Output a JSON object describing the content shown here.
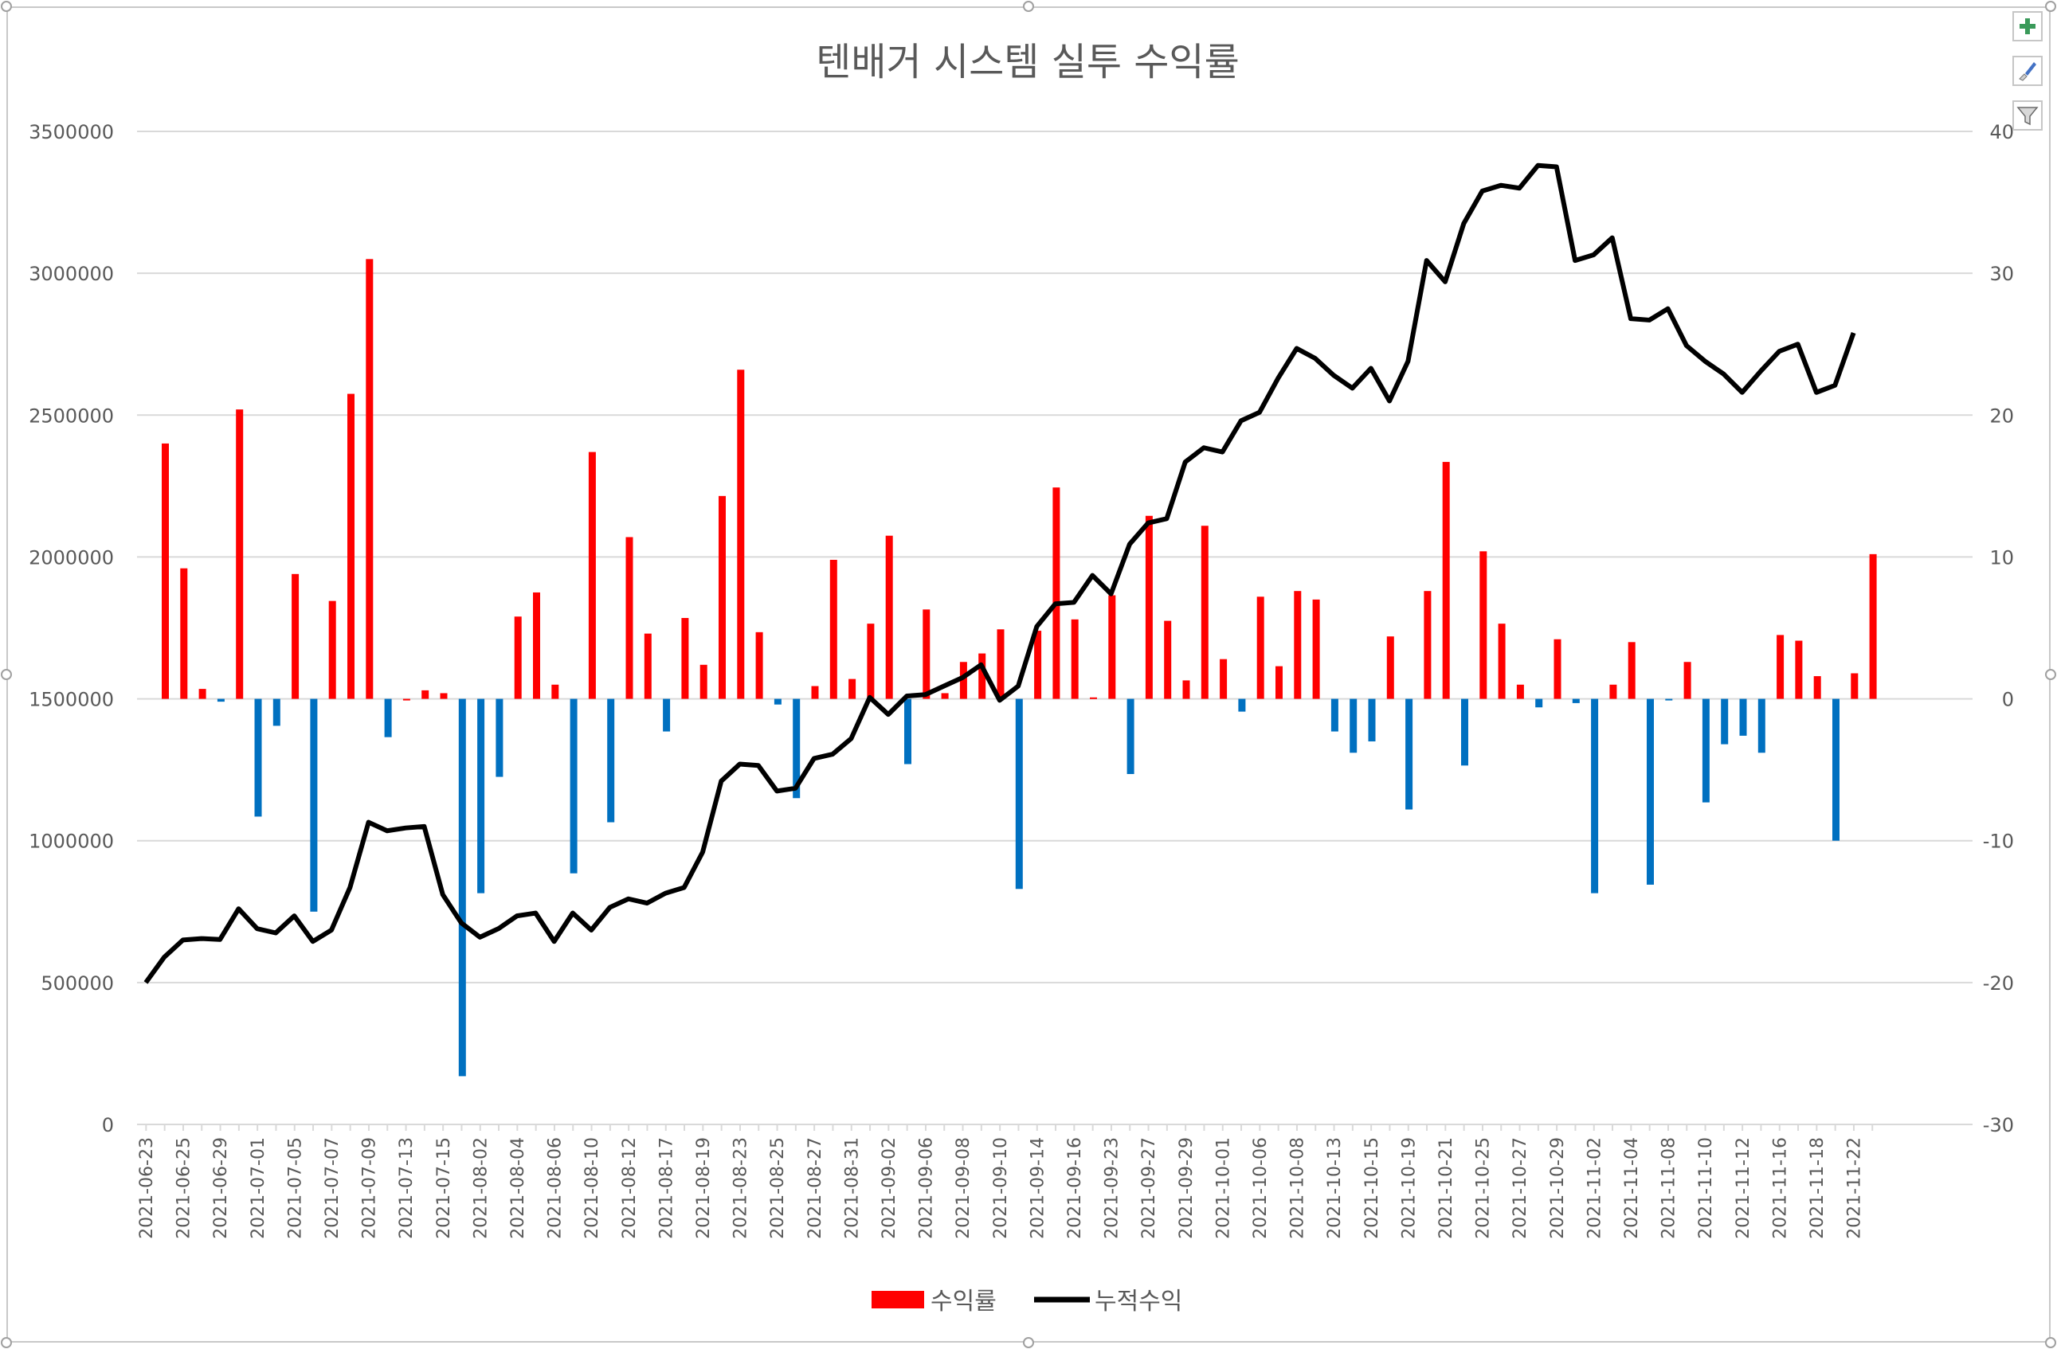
{
  "chart_data": {
    "type": "bar+line",
    "title": "텐배거 시스템 실투 수익률",
    "y_left_ticks": [
      "0",
      "500000",
      "1000000",
      "1500000",
      "2000000",
      "2500000",
      "3000000",
      "3500000"
    ],
    "y_right_ticks": [
      "-30",
      "-20",
      "-10",
      "0",
      "10",
      "20",
      "30",
      "40"
    ],
    "ylim_left": [
      0,
      3500000
    ],
    "ylim_right": [
      -30,
      40
    ],
    "grid": true,
    "legend_position": "bottom",
    "categories": [
      "2021-06-23",
      "",
      "2021-06-25",
      "",
      "2021-06-29",
      "",
      "2021-07-01",
      "",
      "2021-07-05",
      "",
      "2021-07-07",
      "",
      "2021-07-09",
      "",
      "2021-07-13",
      "",
      "2021-07-15",
      "",
      "2021-08-02",
      "",
      "2021-08-04",
      "",
      "2021-08-06",
      "",
      "2021-08-10",
      "",
      "2021-08-12",
      "",
      "2021-08-17",
      "",
      "2021-08-19",
      "",
      "2021-08-23",
      "",
      "2021-08-25",
      "",
      "2021-08-27",
      "",
      "2021-08-31",
      "",
      "2021-09-02",
      "",
      "2021-09-06",
      "",
      "2021-09-08",
      "",
      "2021-09-10",
      "",
      "2021-09-14",
      "",
      "2021-09-16",
      "",
      "2021-09-23",
      "",
      "2021-09-27",
      "",
      "2021-09-29",
      "",
      "2021-10-01",
      "",
      "2021-10-06",
      "",
      "2021-10-08",
      "",
      "2021-10-13",
      "",
      "2021-10-15",
      "",
      "2021-10-19",
      "",
      "2021-10-21",
      "",
      "2021-10-25",
      "",
      "2021-10-27",
      "",
      "2021-10-29",
      "",
      "2021-11-02",
      "",
      "2021-11-04",
      "",
      "2021-11-08",
      "",
      "2021-11-10",
      "",
      "2021-11-12",
      "",
      "2021-11-16",
      "",
      "2021-11-18",
      "",
      "2021-11-22"
    ],
    "series": [
      {
        "name": "수익률",
        "axis": "right",
        "type": "bar",
        "positive_color": "#ff0000",
        "negative_color": "#0070c0",
        "values": [
          18,
          9.2,
          0.7,
          -0.2,
          20.4,
          -8.3,
          -1.9,
          8.8,
          -15,
          6.9,
          21.5,
          31,
          -2.7,
          0,
          0.6,
          0.4,
          -26.6,
          -13.7,
          -5.5,
          5.8,
          7.5,
          1,
          -12.3,
          17.4,
          -8.7,
          11.4,
          4.6,
          -2.3,
          5.7,
          2.4,
          14.3,
          23.2,
          4.7,
          -0.4,
          -7,
          0.9,
          9.8,
          1.4,
          5.3,
          11.5,
          -4.6,
          6.3,
          0.4,
          2.6,
          3.2,
          4.9,
          -13.4,
          4.8,
          14.9,
          5.6,
          0.1,
          7.3,
          -5.3,
          12.9,
          5.5,
          1.3,
          12.2,
          2.8,
          -0.9,
          7.2,
          2.3,
          7.6,
          7,
          -2.3,
          -3.8,
          -3,
          4.4,
          -7.8,
          7.6,
          16.7,
          -4.7,
          10.4,
          5.3,
          1,
          -0.6,
          4.2,
          -0.3,
          -13.7,
          1,
          4,
          -13.1,
          -0.1,
          2.6,
          -7.3,
          -3.2,
          -2.6,
          -3.8,
          4.5,
          4.1,
          1.6,
          -10,
          1.8,
          10.2
        ]
      },
      {
        "name": "누적수익",
        "axis": "left",
        "type": "line",
        "color": "#000000",
        "values": [
          500000,
          590000,
          650000,
          655000,
          652000,
          760000,
          690000,
          675000,
          735000,
          645000,
          685000,
          835000,
          1065000,
          1035000,
          1045000,
          1050000,
          810000,
          710000,
          660000,
          690000,
          735000,
          745000,
          645000,
          745000,
          685000,
          765000,
          795000,
          780000,
          815000,
          835000,
          960000,
          1210000,
          1270000,
          1265000,
          1175000,
          1185000,
          1290000,
          1305000,
          1360000,
          1505000,
          1445000,
          1510000,
          1515000,
          1545000,
          1575000,
          1620000,
          1495000,
          1545000,
          1755000,
          1835000,
          1840000,
          1935000,
          1870000,
          2045000,
          2120000,
          2135000,
          2335000,
          2385000,
          2370000,
          2480000,
          2510000,
          2630000,
          2735000,
          2700000,
          2640000,
          2595000,
          2665000,
          2550000,
          2690000,
          3045000,
          2970000,
          3175000,
          3290000,
          3310000,
          3300000,
          3380000,
          3375000,
          3045000,
          3065000,
          3125000,
          2840000,
          2835000,
          2875000,
          2745000,
          2690000,
          2645000,
          2580000,
          2655000,
          2725000,
          2750000,
          2580000,
          2605000,
          2790000
        ]
      }
    ]
  },
  "toolbar": {
    "add_element_icon": "plus-icon",
    "style_icon": "brush-icon",
    "filter_icon": "filter-icon"
  },
  "colors": {
    "grid": "#d9d9d9",
    "axis_text": "#595959",
    "positive_bar": "#ff0000",
    "negative_bar": "#0070c0",
    "line": "#000000"
  }
}
